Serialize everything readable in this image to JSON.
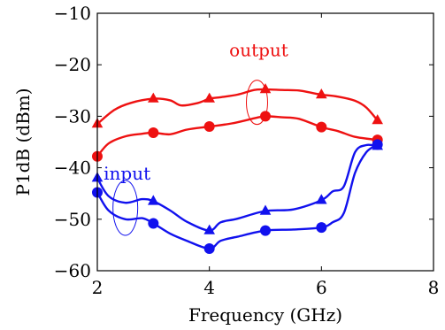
{
  "chart_data": {
    "type": "line",
    "xlabel": "Frequency (GHz)",
    "ylabel": "P1dB (dBm)",
    "xlim": [
      2,
      8
    ],
    "ylim": [
      -60,
      -10
    ],
    "xticks": [
      2,
      4,
      6,
      8
    ],
    "yticks": [
      -60,
      -50,
      -40,
      -30,
      -20,
      -10
    ],
    "grid": false,
    "legend": "none",
    "colors": {
      "red": "#ee1111",
      "blue": "#1111ee"
    },
    "series": [
      {
        "group": "output",
        "color": "#ee1111",
        "marker": "triangle",
        "points": [
          [
            2,
            -31.5
          ],
          [
            2.3,
            -28.8
          ],
          [
            2.6,
            -27.4
          ],
          [
            3,
            -26.6
          ],
          [
            3.3,
            -26.9
          ],
          [
            3.5,
            -27.9
          ],
          [
            3.8,
            -27.4
          ],
          [
            4,
            -26.6
          ],
          [
            4.2,
            -26.3
          ],
          [
            4.5,
            -25.8
          ],
          [
            4.8,
            -24.9
          ],
          [
            5,
            -24.8
          ],
          [
            5.3,
            -24.9
          ],
          [
            5.6,
            -25.0
          ],
          [
            5.8,
            -25.4
          ],
          [
            6,
            -25.8
          ],
          [
            6.3,
            -26.2
          ],
          [
            6.6,
            -27.0
          ],
          [
            6.8,
            -28.3
          ],
          [
            7,
            -30.8
          ]
        ],
        "markers_x": [
          2,
          3,
          4,
          5,
          6,
          7
        ]
      },
      {
        "group": "output",
        "color": "#ee1111",
        "marker": "circle",
        "points": [
          [
            2,
            -37.8
          ],
          [
            2.2,
            -35.3
          ],
          [
            2.5,
            -33.9
          ],
          [
            2.8,
            -33.4
          ],
          [
            3,
            -33.2
          ],
          [
            3.3,
            -33.5
          ],
          [
            3.6,
            -32.6
          ],
          [
            4,
            -32.0
          ],
          [
            4.4,
            -31.4
          ],
          [
            4.8,
            -30.4
          ],
          [
            5,
            -30.0
          ],
          [
            5.3,
            -30.2
          ],
          [
            5.6,
            -30.5
          ],
          [
            6,
            -32.1
          ],
          [
            6.3,
            -32.9
          ],
          [
            6.6,
            -34.0
          ],
          [
            7,
            -34.6
          ]
        ],
        "markers_x": [
          2,
          3,
          4,
          5,
          6,
          7
        ]
      },
      {
        "group": "input",
        "color": "#1111ee",
        "marker": "triangle",
        "points": [
          [
            2,
            -42.0
          ],
          [
            2.2,
            -45.5
          ],
          [
            2.5,
            -46.8
          ],
          [
            2.8,
            -46.1
          ],
          [
            3,
            -46.5
          ],
          [
            3.3,
            -48.3
          ],
          [
            3.6,
            -50.5
          ],
          [
            4,
            -52.2
          ],
          [
            4.2,
            -50.6
          ],
          [
            4.5,
            -49.9
          ],
          [
            5,
            -48.4
          ],
          [
            5.5,
            -48.1
          ],
          [
            6,
            -46.3
          ],
          [
            6.2,
            -44.6
          ],
          [
            6.4,
            -43.6
          ],
          [
            6.6,
            -37.0
          ],
          [
            6.8,
            -35.6
          ],
          [
            7,
            -35.8
          ]
        ],
        "markers_x": [
          2,
          3,
          4,
          5,
          6,
          7
        ]
      },
      {
        "group": "input",
        "color": "#1111ee",
        "marker": "circle",
        "points": [
          [
            2,
            -44.8
          ],
          [
            2.2,
            -48.3
          ],
          [
            2.5,
            -50.0
          ],
          [
            2.8,
            -49.8
          ],
          [
            3,
            -50.8
          ],
          [
            3.3,
            -52.8
          ],
          [
            3.6,
            -54.2
          ],
          [
            4,
            -55.7
          ],
          [
            4.2,
            -54.2
          ],
          [
            4.5,
            -53.4
          ],
          [
            5,
            -52.2
          ],
          [
            5.5,
            -52.0
          ],
          [
            6,
            -51.6
          ],
          [
            6.2,
            -50.6
          ],
          [
            6.4,
            -48.8
          ],
          [
            6.6,
            -41.0
          ],
          [
            6.8,
            -37.0
          ],
          [
            7,
            -35.5
          ]
        ],
        "markers_x": [
          2,
          3,
          4,
          5,
          6,
          7
        ]
      }
    ],
    "annotations": [
      {
        "text": "output",
        "color": "#ee1111",
        "ellipse_center": [
          4.85,
          -27.3
        ]
      },
      {
        "text": "input",
        "color": "#1111ee",
        "ellipse_center": [
          2.5,
          -47.8
        ]
      }
    ]
  }
}
